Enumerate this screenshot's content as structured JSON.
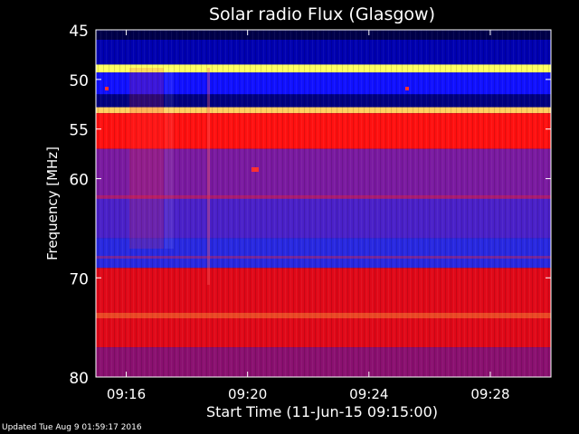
{
  "chart_data": {
    "type": "heatmap",
    "title": "Solar radio Flux (Glasgow)",
    "xlabel": "Start Time (11-Jun-15 09:15:00)",
    "ylabel": "Frequency [MHz]",
    "x_axis": {
      "unit": "time",
      "range": [
        "09:15:00",
        "09:30:00"
      ],
      "tick_labels": [
        "09:16",
        "09:20",
        "09:24",
        "09:28"
      ]
    },
    "y_axis": {
      "unit": "MHz",
      "range": [
        45,
        80
      ],
      "direction": "increasing downward",
      "tick_labels": [
        "45",
        "50",
        "55",
        "60",
        "70",
        "80"
      ],
      "tick_values": [
        45,
        50,
        55,
        60,
        70,
        80
      ]
    },
    "colormap": [
      "#00003a",
      "#0000ff",
      "#5a20c0",
      "#c01860",
      "#ff0000",
      "#ffff00",
      "#ffffff"
    ],
    "frequency_bands": [
      {
        "range": [
          45,
          46
        ],
        "level": "low",
        "color": "#00004a"
      },
      {
        "range": [
          46,
          48.5
        ],
        "level": "low",
        "color": "#0000b0"
      },
      {
        "range": [
          48.5,
          49.3
        ],
        "level": "very high",
        "color": "#ffff60"
      },
      {
        "range": [
          49.3,
          51.5
        ],
        "level": "low",
        "color": "#1010ff"
      },
      {
        "range": [
          51.5,
          52.8
        ],
        "level": "low",
        "color": "#000080"
      },
      {
        "range": [
          52.8,
          53.4
        ],
        "level": "very high",
        "color": "#ffd060"
      },
      {
        "range": [
          53.4,
          57
        ],
        "level": "high",
        "color": "#ff1010"
      },
      {
        "range": [
          57,
          62
        ],
        "level": "medium",
        "color": "#7a1aa0"
      },
      {
        "range": [
          62,
          66
        ],
        "level": "medium-low",
        "color": "#4a20c8"
      },
      {
        "range": [
          66,
          69
        ],
        "level": "low",
        "color": "#2828e0"
      },
      {
        "range": [
          69,
          77
        ],
        "level": "high",
        "color": "#e00818"
      },
      {
        "range": [
          77,
          80
        ],
        "level": "medium",
        "color": "#8a1070"
      }
    ],
    "grid": false,
    "legend": "none"
  },
  "footer": {
    "updated_text": "Updated Tue Aug  9 01:59:17 2016"
  }
}
